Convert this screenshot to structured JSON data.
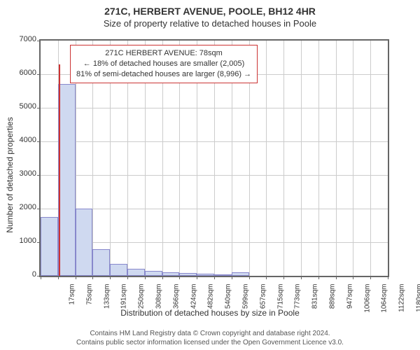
{
  "title_main": "271C, HERBERT AVENUE, POOLE, BH12 4HR",
  "title_sub": "Size of property relative to detached houses in Poole",
  "chart": {
    "type": "histogram",
    "background_color": "#ffffff",
    "grid_color": "#cccccc",
    "border_color": "#666666",
    "bar_fill": "#cfd9f0",
    "bar_border": "#8888cc",
    "marker_color": "#cc3333",
    "ylabel": "Number of detached properties",
    "xlabel": "Distribution of detached houses by size in Poole",
    "ylim": [
      0,
      7000
    ],
    "ytick_step": 1000,
    "yticks": [
      0,
      1000,
      2000,
      3000,
      4000,
      5000,
      6000,
      7000
    ],
    "xticks": [
      "17sqm",
      "75sqm",
      "133sqm",
      "191sqm",
      "250sqm",
      "308sqm",
      "366sqm",
      "424sqm",
      "482sqm",
      "540sqm",
      "599sqm",
      "657sqm",
      "715sqm",
      "773sqm",
      "831sqm",
      "889sqm",
      "947sqm",
      "1006sqm",
      "1064sqm",
      "1122sqm",
      "1180sqm"
    ],
    "values": [
      1750,
      5700,
      2000,
      800,
      350,
      200,
      150,
      100,
      80,
      60,
      50,
      100,
      0,
      0,
      0,
      0,
      0,
      0,
      0,
      0,
      0
    ],
    "marker_x_index": 1,
    "marker_fraction_within_bin": 0.05,
    "marker_height": 6300
  },
  "legend": {
    "line1": "271C HERBERT AVENUE: 78sqm",
    "line2": "← 18% of detached houses are smaller (2,005)",
    "line3": "81% of semi-detached houses are larger (8,996) →"
  },
  "footer": {
    "line1": "Contains HM Land Registry data © Crown copyright and database right 2024.",
    "line2": "Contains public sector information licensed under the Open Government Licence v3.0."
  },
  "style": {
    "title_fontsize": 14,
    "subtitle_fontsize": 13,
    "axis_label_fontsize": 12,
    "tick_fontsize": 11,
    "legend_fontsize": 11,
    "footer_fontsize": 10
  }
}
